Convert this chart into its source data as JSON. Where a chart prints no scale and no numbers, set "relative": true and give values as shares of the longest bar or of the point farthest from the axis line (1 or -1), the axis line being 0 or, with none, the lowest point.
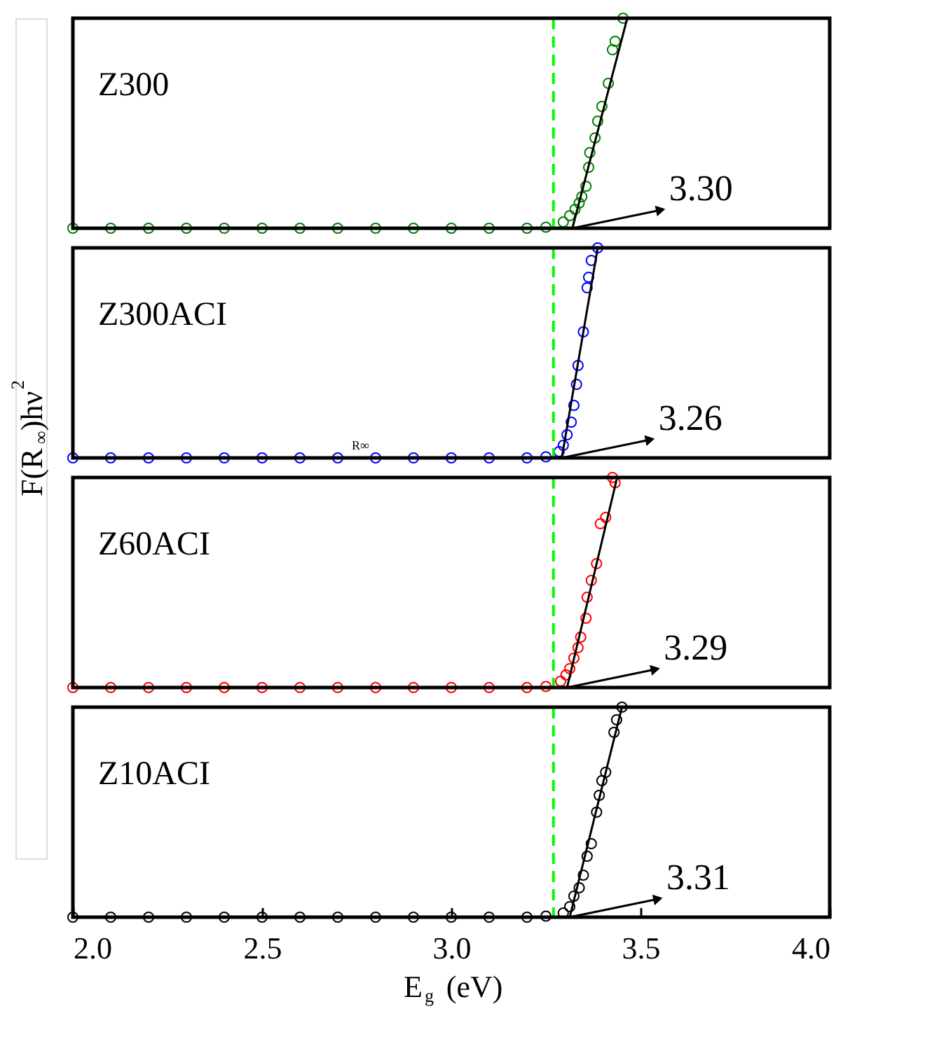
{
  "chart_data": [
    {
      "type": "scatter",
      "title": "Z300",
      "ylabel": "F(R$_{∞}$)hν$^{2}$",
      "relative": true,
      "xlim": [
        2.0,
        4.0
      ],
      "tick_labels": false,
      "series": [
        {
          "marker": "circle",
          "color": "#008000",
          "x": [
            2.0,
            2.1,
            2.2,
            2.3,
            2.4,
            2.5,
            2.6,
            2.7,
            2.8,
            2.9,
            3.0,
            3.1,
            3.2,
            3.25,
            3.296,
            3.313,
            3.327,
            3.338,
            3.345,
            3.356,
            3.363,
            3.366,
            3.38,
            3.387,
            3.398,
            3.415,
            3.426,
            3.433,
            3.454
          ],
          "values": [
            0,
            0,
            0,
            0,
            0,
            0,
            0,
            0,
            0,
            0,
            0,
            0,
            0,
            0.005,
            0.03,
            0.06,
            0.09,
            0.12,
            0.15,
            0.2,
            0.29,
            0.36,
            0.43,
            0.51,
            0.58,
            0.69,
            0.85,
            0.89,
            1.0
          ]
        },
        {
          "type": "line",
          "color": "#000000",
          "x": [
            3.32,
            3.465
          ],
          "values": [
            0,
            1.0
          ]
        }
      ],
      "annotations": [
        {
          "text": "3.30",
          "x": 3.32,
          "y": 0
        }
      ],
      "ref_lines": [
        {
          "axis": "x",
          "value": 3.27,
          "color": "#00ff00",
          "line_style": "dashed"
        }
      ]
    },
    {
      "type": "scatter",
      "title": "Z300ACI",
      "relative": true,
      "xlim": [
        2.0,
        4.0
      ],
      "tick_labels": false,
      "series": [
        {
          "marker": "circle",
          "color": "#0000ff",
          "x": [
            2.0,
            2.1,
            2.2,
            2.3,
            2.4,
            2.5,
            2.6,
            2.7,
            2.8,
            2.9,
            3.0,
            3.1,
            3.2,
            3.25,
            3.285,
            3.296,
            3.306,
            3.317,
            3.324,
            3.331,
            3.335,
            3.349,
            3.359,
            3.363,
            3.37,
            3.387
          ],
          "values": [
            0,
            0,
            0,
            0,
            0,
            0,
            0,
            0,
            0,
            0,
            0,
            0,
            0,
            0.005,
            0.03,
            0.06,
            0.11,
            0.17,
            0.25,
            0.35,
            0.44,
            0.6,
            0.81,
            0.86,
            0.94,
            1.0
          ]
        },
        {
          "type": "line",
          "color": "#000000",
          "x": [
            3.292,
            3.387
          ],
          "values": [
            0,
            1.0
          ]
        }
      ],
      "annotations": [
        {
          "text": "3.26",
          "x": 3.292,
          "y": 0
        },
        "R∞"
      ],
      "ref_lines": [
        {
          "axis": "x",
          "value": 3.27,
          "color": "#00ff00",
          "line_style": "dashed"
        }
      ]
    },
    {
      "type": "scatter",
      "title": "Z60ACI",
      "relative": true,
      "xlim": [
        2.0,
        4.0
      ],
      "tick_labels": false,
      "series": [
        {
          "marker": "circle",
          "color": "#ff0000",
          "x": [
            2.0,
            2.1,
            2.2,
            2.3,
            2.4,
            2.5,
            2.6,
            2.7,
            2.8,
            2.9,
            3.0,
            3.1,
            3.2,
            3.25,
            3.289,
            3.303,
            3.313,
            3.324,
            3.335,
            3.342,
            3.356,
            3.359,
            3.37,
            3.384,
            3.394,
            3.408,
            3.426,
            3.433
          ],
          "values": [
            0,
            0,
            0,
            0,
            0,
            0,
            0,
            0,
            0,
            0,
            0,
            0,
            0,
            0.005,
            0.03,
            0.06,
            0.09,
            0.14,
            0.19,
            0.24,
            0.33,
            0.43,
            0.51,
            0.59,
            0.78,
            0.81,
            1.0,
            0.975
          ]
        },
        {
          "type": "line",
          "color": "#000000",
          "x": [
            3.306,
            3.437
          ],
          "values": [
            0,
            0.99
          ]
        }
      ],
      "annotations": [
        {
          "text": "3.29",
          "x": 3.306,
          "y": 0
        }
      ],
      "ref_lines": [
        {
          "axis": "x",
          "value": 3.27,
          "color": "#00ff00",
          "line_style": "dashed"
        }
      ]
    },
    {
      "type": "scatter",
      "title": "Z10ACI",
      "xlabel": "E$_{g}$ (eV)",
      "relative": true,
      "xlim": [
        2.0,
        4.0
      ],
      "xticks": [
        {
          "value": 2.0,
          "label": "2.0"
        },
        2.5,
        {
          "value": 3.0,
          "label": "3.0"
        },
        3.5,
        {
          "value": 4.0,
          "label": "4.0"
        }
      ],
      "tick_labels": "x",
      "series": [
        {
          "marker": "circle",
          "color": "#000000",
          "x": [
            2.0,
            2.1,
            2.2,
            2.3,
            2.4,
            2.5,
            2.6,
            2.7,
            2.8,
            2.9,
            3.0,
            3.1,
            3.2,
            3.25,
            3.296,
            3.313,
            3.324,
            3.338,
            3.349,
            3.359,
            3.37,
            3.384,
            3.391,
            3.398,
            3.408,
            3.43,
            3.437,
            3.451
          ],
          "values": [
            0,
            0,
            0,
            0,
            0,
            0,
            0,
            0,
            0,
            0,
            0,
            0,
            0,
            0.005,
            0.02,
            0.05,
            0.1,
            0.14,
            0.2,
            0.29,
            0.35,
            0.5,
            0.58,
            0.65,
            0.69,
            0.88,
            0.94,
            1.0
          ]
        },
        {
          "type": "line",
          "color": "#000000",
          "x": [
            3.313,
            3.451
          ],
          "values": [
            0,
            1.0
          ]
        }
      ],
      "annotations": [
        {
          "text": "3.31",
          "x": 3.313,
          "y": 0
        }
      ],
      "ref_lines": [
        {
          "axis": "x",
          "value": 3.27,
          "color": "#00ff00",
          "line_style": "dashed"
        }
      ]
    }
  ]
}
